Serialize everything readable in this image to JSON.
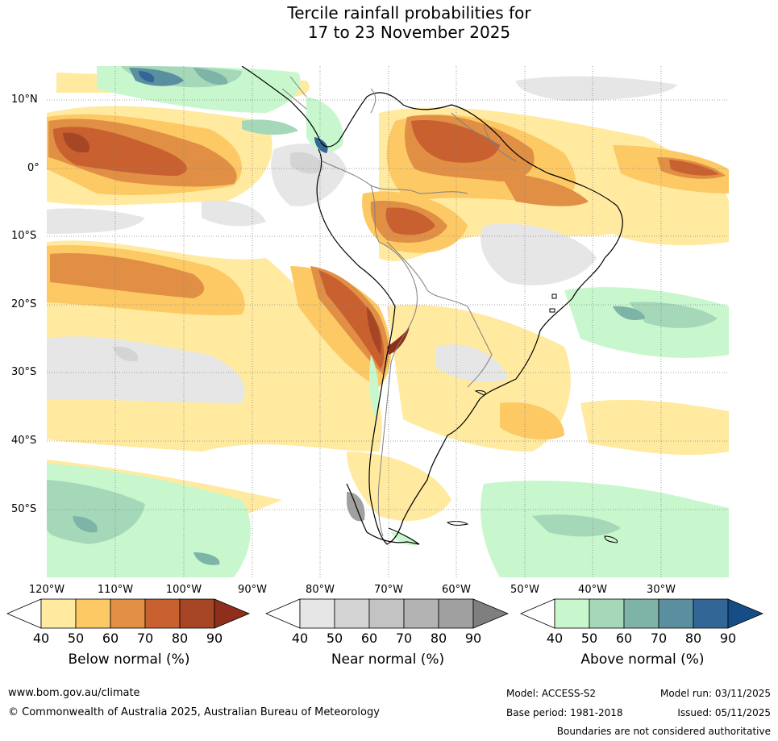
{
  "title": {
    "line1": "Tercile rainfall probabilities for",
    "line2": "17 to 23 November 2025"
  },
  "axes": {
    "latitudes": [
      "10°N",
      "0°",
      "10°S",
      "20°S",
      "30°S",
      "40°S",
      "50°S"
    ],
    "longitudes": [
      "120°W",
      "110°W",
      "100°W",
      "90°W",
      "80°W",
      "70°W",
      "60°W",
      "50°W",
      "40°W",
      "30°W"
    ]
  },
  "legend": {
    "below": {
      "label": "Below normal (%)",
      "ticks": [
        "40",
        "50",
        "60",
        "70",
        "80",
        "90"
      ],
      "colors": [
        "#ffffff",
        "#ffeaa0",
        "#fdc964",
        "#e08f44",
        "#c9602f",
        "#a64624",
        "#8e2e1b"
      ]
    },
    "near": {
      "label": "Near normal (%)",
      "ticks": [
        "40",
        "50",
        "60",
        "70",
        "80",
        "90"
      ],
      "colors": [
        "#ffffff",
        "#e6e6e6",
        "#d4d4d4",
        "#c3c3c3",
        "#b3b3b3",
        "#a0a0a0",
        "#7f7f7f"
      ]
    },
    "above": {
      "label": "Above normal (%)",
      "ticks": [
        "40",
        "50",
        "60",
        "70",
        "80",
        "90"
      ],
      "colors": [
        "#ffffff",
        "#c8f7cd",
        "#a4d8b9",
        "#7eb3a8",
        "#5a8fa0",
        "#326697",
        "#164d86"
      ]
    }
  },
  "footer": {
    "website": "www.bom.gov.au/climate",
    "copyright": "© Commonwealth of Australia 2025, Australian Bureau of Meteorology",
    "model": "Model: ACCESS-S2",
    "base_period": "Base period: 1981-2018",
    "model_run": "Model run: 03/11/2025",
    "issued": "Issued: 05/11/2025",
    "boundaries": "Boundaries are not considered authoritative"
  }
}
